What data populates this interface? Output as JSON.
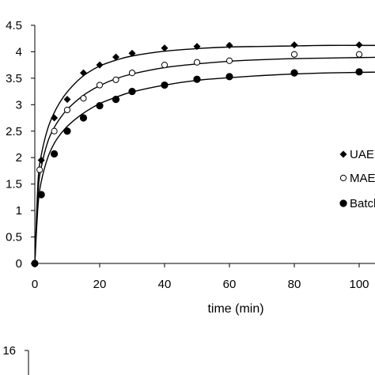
{
  "chart_data": [
    {
      "type": "scatter",
      "xlabel": "time (min)",
      "ylabel": "",
      "xlim": [
        0,
        110
      ],
      "ylim": [
        0,
        4.5
      ],
      "x_ticks": [
        "0",
        "20",
        "40",
        "60",
        "80",
        "100"
      ],
      "y_ticks": [
        "0",
        "0.5",
        "1",
        "1.5",
        "2",
        "2.5",
        "3",
        "3.5",
        "4",
        "4.5"
      ],
      "grid": false,
      "legend_position": "right",
      "series": [
        {
          "name": "UAE",
          "marker": "filled-diamond",
          "color": "#000000",
          "x": [
            0,
            2,
            6,
            10,
            15,
            20,
            25,
            30,
            40,
            50,
            60,
            80,
            100
          ],
          "y": [
            0,
            1.95,
            2.75,
            3.1,
            3.6,
            3.75,
            3.9,
            3.97,
            4.07,
            4.1,
            4.12,
            4.13,
            4.13
          ],
          "fit": [
            [
              0,
              0
            ],
            [
              1,
              1.55
            ],
            [
              2,
              2.05
            ],
            [
              4,
              2.55
            ],
            [
              6,
              2.85
            ],
            [
              8,
              3.07
            ],
            [
              10,
              3.24
            ],
            [
              13,
              3.44
            ],
            [
              16,
              3.59
            ],
            [
              20,
              3.73
            ],
            [
              25,
              3.84
            ],
            [
              30,
              3.92
            ],
            [
              40,
              4.01
            ],
            [
              50,
              4.06
            ],
            [
              60,
              4.09
            ],
            [
              70,
              4.1
            ],
            [
              80,
              4.11
            ],
            [
              90,
              4.12
            ],
            [
              100,
              4.12
            ],
            [
              110,
              4.12
            ]
          ]
        },
        {
          "name": "MAE",
          "marker": "open-circle",
          "color": "#000000",
          "x": [
            0,
            1.5,
            6,
            10,
            15,
            20,
            25,
            30,
            40,
            50,
            60,
            80,
            100
          ],
          "y": [
            0,
            1.77,
            2.5,
            2.9,
            3.12,
            3.37,
            3.47,
            3.6,
            3.75,
            3.8,
            3.83,
            3.95,
            3.95
          ],
          "fit": [
            [
              0,
              0
            ],
            [
              1,
              1.35
            ],
            [
              2,
              1.82
            ],
            [
              4,
              2.3
            ],
            [
              6,
              2.57
            ],
            [
              8,
              2.76
            ],
            [
              10,
              2.91
            ],
            [
              13,
              3.08
            ],
            [
              16,
              3.22
            ],
            [
              20,
              3.36
            ],
            [
              25,
              3.49
            ],
            [
              30,
              3.58
            ],
            [
              40,
              3.7
            ],
            [
              50,
              3.77
            ],
            [
              60,
              3.82
            ],
            [
              70,
              3.85
            ],
            [
              80,
              3.87
            ],
            [
              90,
              3.88
            ],
            [
              100,
              3.89
            ],
            [
              110,
              3.9
            ]
          ]
        },
        {
          "name": "Batch",
          "marker": "filled-circle",
          "color": "#000000",
          "x": [
            0,
            2,
            6,
            10,
            15,
            20,
            25,
            30,
            40,
            50,
            60,
            80,
            100
          ],
          "y": [
            0,
            1.3,
            2.07,
            2.5,
            2.75,
            2.98,
            3.1,
            3.25,
            3.37,
            3.48,
            3.53,
            3.6,
            3.62
          ],
          "fit": [
            [
              0,
              0
            ],
            [
              1,
              1.1
            ],
            [
              2,
              1.55
            ],
            [
              4,
              2.0
            ],
            [
              6,
              2.27
            ],
            [
              8,
              2.45
            ],
            [
              10,
              2.59
            ],
            [
              13,
              2.75
            ],
            [
              16,
              2.88
            ],
            [
              20,
              3.02
            ],
            [
              25,
              3.14
            ],
            [
              30,
              3.24
            ],
            [
              40,
              3.37
            ],
            [
              50,
              3.46
            ],
            [
              60,
              3.51
            ],
            [
              70,
              3.55
            ],
            [
              80,
              3.58
            ],
            [
              90,
              3.6
            ],
            [
              100,
              3.61
            ],
            [
              110,
              3.62
            ]
          ]
        }
      ]
    },
    {
      "type": "scatter",
      "y_ticks": [
        "16"
      ],
      "series": []
    }
  ]
}
